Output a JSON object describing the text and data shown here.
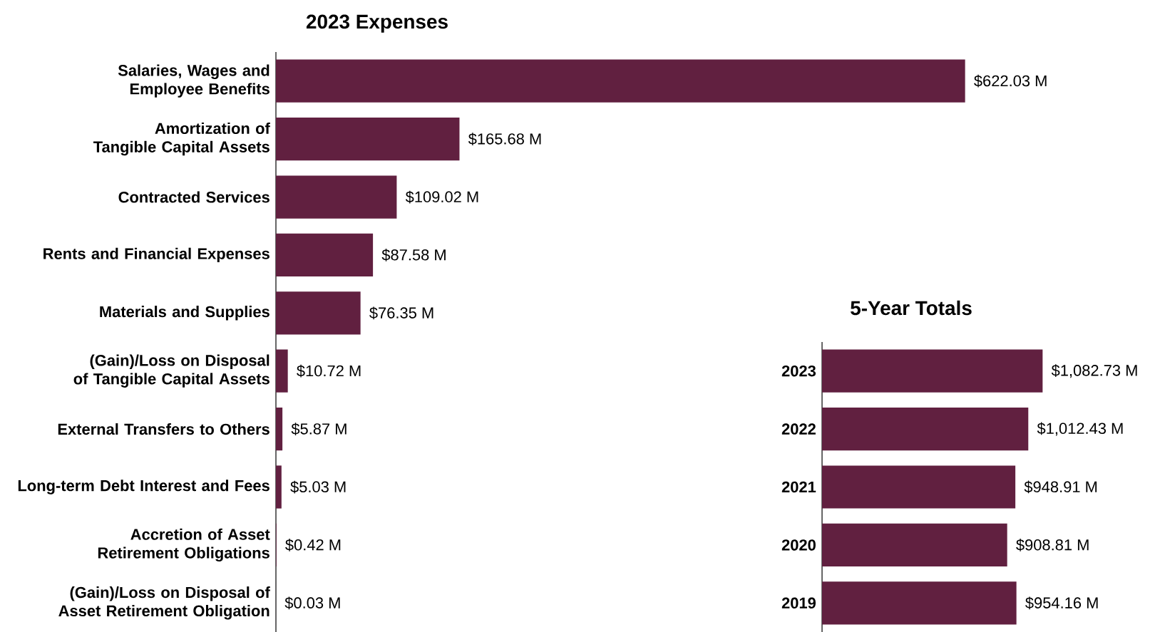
{
  "chart_data": [
    {
      "type": "bar",
      "orientation": "horizontal",
      "title": "2023 Expenses",
      "color": "#612040",
      "tick_labels": "y",
      "categories": [
        "Salaries, Wages and Employee Benefits",
        "Amortization of Tangible Capital Assets",
        "Contracted Services",
        "Rents and Financial Expenses",
        "Materials and Supplies",
        "(Gain)/Loss on Disposal of Tangible Capital Assets",
        "External Transfers to Others",
        "Long-term Debt Interest and Fees",
        "Accretion of Asset Retirement Obligations",
        "(Gain)/Loss on Disposal of Asset Retirement Obligation"
      ],
      "values": [
        622.03,
        165.68,
        109.02,
        87.58,
        76.35,
        10.72,
        5.87,
        5.03,
        0.42,
        0.03
      ],
      "value_labels": [
        "$622.03 M",
        "$165.68 M",
        "$109.02 M",
        "$87.58 M",
        "$76.35 M",
        "$10.72 M",
        "$5.87 M",
        "$5.03 M",
        "$0.42 M",
        "$0.03 M"
      ]
    },
    {
      "type": "bar",
      "orientation": "horizontal",
      "title": "5-Year Totals",
      "color": "#612040",
      "tick_labels": "y",
      "categories": [
        "2023",
        "2022",
        "2021",
        "2020",
        "2019"
      ],
      "values": [
        1082.73,
        1012.43,
        948.91,
        908.81,
        954.16
      ],
      "value_labels": [
        "$1,082.73 M",
        "$1,012.43 M",
        "$948.91 M",
        "$908.81 M",
        "$954.16 M"
      ]
    }
  ]
}
